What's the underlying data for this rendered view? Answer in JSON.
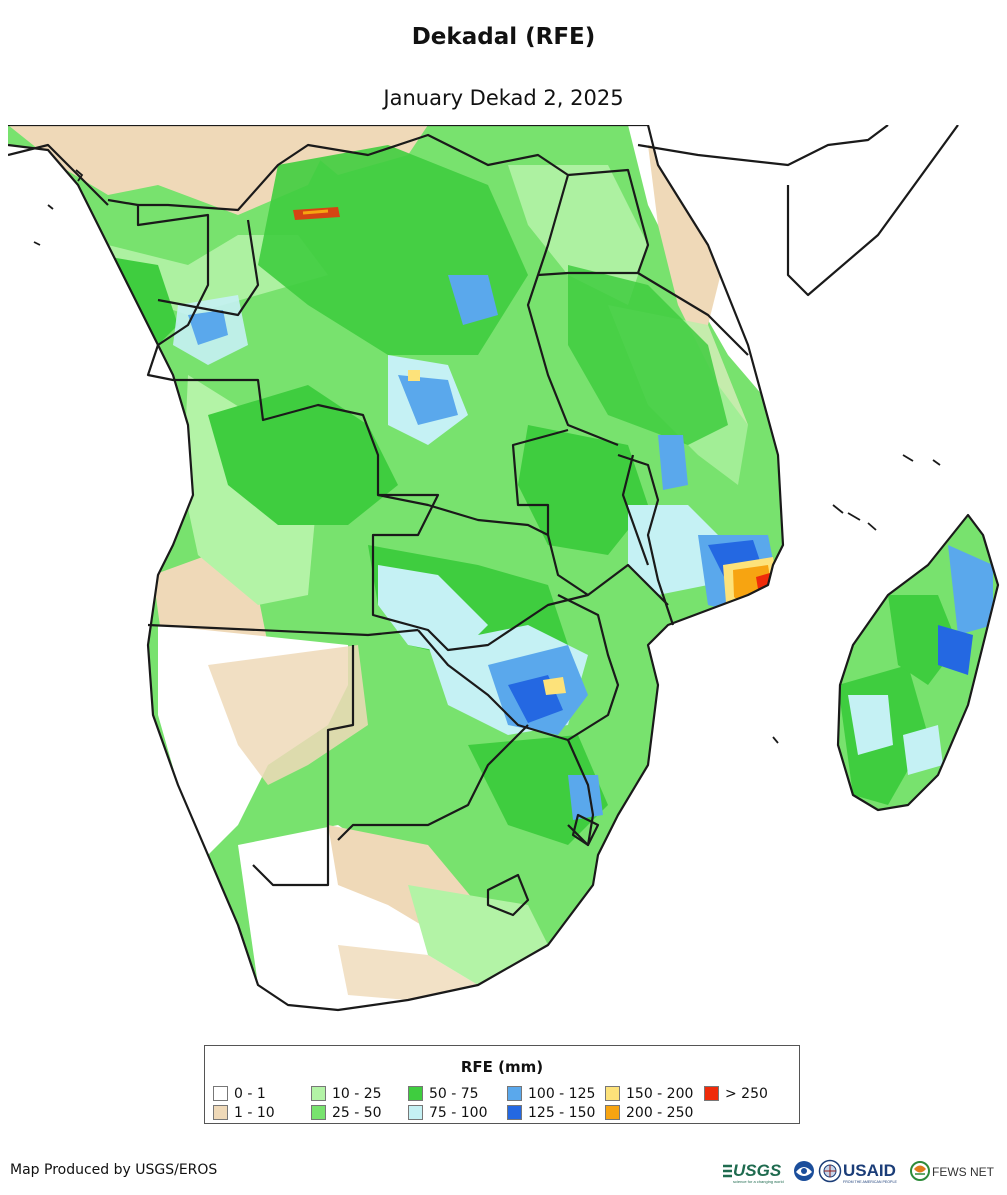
{
  "title": "Dekadal (RFE)",
  "subtitle": "January Dekad 2, 2025",
  "legend": {
    "title": "RFE (mm)",
    "classes": [
      {
        "label": "0 - 1",
        "color": "#ffffff"
      },
      {
        "label": "1 - 10",
        "color": "#efd9b8"
      },
      {
        "label": "10 - 25",
        "color": "#b3f3a6"
      },
      {
        "label": "25 - 50",
        "color": "#78e26e"
      },
      {
        "label": "50 - 75",
        "color": "#3fcd3f"
      },
      {
        "label": "75 - 100",
        "color": "#c5f1f4"
      },
      {
        "label": "100 - 125",
        "color": "#5aa8ec"
      },
      {
        "label": "125 - 150",
        "color": "#2468e2"
      },
      {
        "label": "150 - 200",
        "color": "#fde27a"
      },
      {
        "label": "200 - 250",
        "color": "#f7a411"
      },
      {
        "label": "> 250",
        "color": "#ef2b0a"
      }
    ]
  },
  "credit": "Map Produced by USGS/EROS",
  "logos": {
    "usgs": "USGS",
    "usgs_tagline": "science for a changing world",
    "usaid": "USAID",
    "usaid_tagline": "FROM THE AMERICAN PEOPLE",
    "fewsnet": "FEWS NET",
    "noaa_icon": "noaa-logo-icon",
    "nasa_icon": "agency-seal-icon"
  }
}
